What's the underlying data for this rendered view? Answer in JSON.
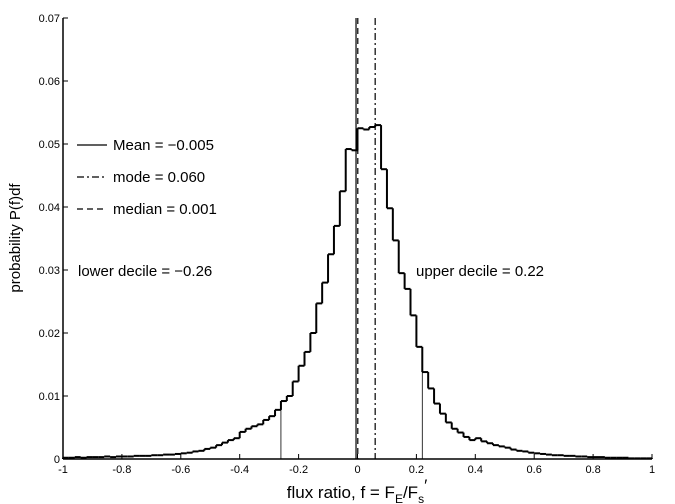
{
  "chart_data": {
    "type": "step-histogram",
    "ylabel": "probability P(f)df",
    "xlabel_parts": [
      "flux ratio,  f = F",
      "E",
      "/F",
      "s",
      "′"
    ],
    "xlim": [
      -1,
      1
    ],
    "ylim": [
      0,
      0.07
    ],
    "xticks": [
      -1,
      -0.8,
      -0.6,
      -0.4,
      -0.2,
      0,
      0.2,
      0.4,
      0.6,
      0.8,
      1
    ],
    "yticks": [
      0,
      0.01,
      0.02,
      0.03,
      0.04,
      0.05,
      0.06,
      0.07
    ],
    "color": "#000000",
    "bins": [
      -1,
      -0.98,
      -0.96,
      -0.94,
      -0.92,
      -0.9,
      -0.88,
      -0.86,
      -0.84,
      -0.82,
      -0.8,
      -0.78,
      -0.76,
      -0.74,
      -0.72,
      -0.7,
      -0.68,
      -0.66,
      -0.64,
      -0.62,
      -0.6,
      -0.58,
      -0.56,
      -0.54,
      -0.52,
      -0.5,
      -0.48,
      -0.46,
      -0.44,
      -0.42,
      -0.4,
      -0.38,
      -0.36,
      -0.34,
      -0.32,
      -0.3,
      -0.28,
      -0.26,
      -0.24,
      -0.22,
      -0.2,
      -0.18,
      -0.16,
      -0.14,
      -0.12,
      -0.1,
      -0.08,
      -0.06,
      -0.04,
      -0.02,
      0,
      0.02,
      0.04,
      0.06,
      0.08,
      0.1,
      0.12,
      0.14,
      0.16,
      0.18,
      0.2,
      0.22,
      0.24,
      0.26,
      0.28,
      0.3,
      0.32,
      0.34,
      0.36,
      0.38,
      0.4,
      0.42,
      0.44,
      0.46,
      0.48,
      0.5,
      0.52,
      0.54,
      0.56,
      0.58,
      0.6,
      0.62,
      0.64,
      0.66,
      0.68,
      0.7,
      0.72,
      0.74,
      0.76,
      0.78,
      0.8,
      0.82,
      0.84,
      0.86,
      0.88,
      0.9,
      0.92,
      0.94,
      0.96,
      0.98,
      1
    ],
    "values": [
      0.0002,
      0.0002,
      0.0003,
      0.0002,
      0.0003,
      0.0003,
      0.0003,
      0.0004,
      0.0003,
      0.0004,
      0.0004,
      0.0004,
      0.0005,
      0.0005,
      0.0005,
      0.0006,
      0.0006,
      0.0007,
      0.0007,
      0.0008,
      0.0009,
      0.001,
      0.0012,
      0.0013,
      0.0016,
      0.0018,
      0.0022,
      0.0026,
      0.003,
      0.0033,
      0.0043,
      0.0048,
      0.0052,
      0.0055,
      0.0062,
      0.0068,
      0.0078,
      0.0092,
      0.01,
      0.0123,
      0.0148,
      0.017,
      0.02,
      0.0247,
      0.028,
      0.0325,
      0.037,
      0.0425,
      0.0492,
      0.049,
      0.0525,
      0.0523,
      0.0527,
      0.053,
      0.046,
      0.0398,
      0.0347,
      0.0295,
      0.027,
      0.0228,
      0.0178,
      0.0138,
      0.0112,
      0.0088,
      0.0072,
      0.0058,
      0.0048,
      0.0042,
      0.0035,
      0.003,
      0.0033,
      0.0028,
      0.0025,
      0.0022,
      0.002,
      0.0018,
      0.0015,
      0.0013,
      0.0012,
      0.001,
      0.0009,
      0.0008,
      0.0007,
      0.0006,
      0.0006,
      0.0005,
      0.0005,
      0.0004,
      0.0004,
      0.0003,
      0.0003,
      0.0003,
      0.0002,
      0.0002,
      0.0002,
      0.0002,
      0.0001,
      0.0001,
      0.0001,
      0.0001
    ],
    "reference_lines": [
      {
        "name": "Mean = −0.005",
        "value": -0.005,
        "style": "solid"
      },
      {
        "name": "mode = 0.060",
        "value": 0.06,
        "style": "dashdot"
      },
      {
        "name": "median = 0.001",
        "value": 0.001,
        "style": "dashed"
      }
    ],
    "deciles": [
      {
        "label": "lower decile = −0.26",
        "value": -0.26
      },
      {
        "label": "upper decile = 0.22",
        "value": 0.22
      }
    ]
  }
}
